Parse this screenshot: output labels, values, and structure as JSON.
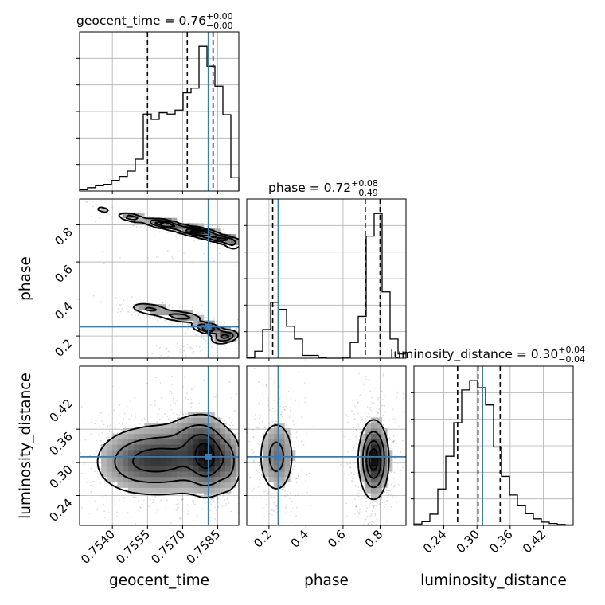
{
  "chart_data": {
    "type": "corner",
    "parameters": [
      "geocent_time",
      "phase",
      "luminosity_distance"
    ],
    "truth": {
      "geocent_time": 0.7581,
      "phase": 0.25,
      "luminosity_distance": 0.31
    },
    "truth_color": "#3d7ab0",
    "ranges": {
      "geocent_time": [
        0.7526,
        0.7594
      ],
      "phase": [
        0.08,
        0.94
      ],
      "luminosity_distance": [
        0.186,
        0.474
      ]
    },
    "ticks": {
      "geocent_time": [
        "0.7540",
        "0.7555",
        "0.7570",
        "0.7585"
      ],
      "phase": [
        "0.2",
        "0.4",
        "0.6",
        "0.8"
      ],
      "luminosity_distance": [
        "0.24",
        "0.30",
        "0.36",
        "0.42"
      ]
    },
    "titles": {
      "geocent_time": {
        "name": "geocent_time",
        "median": "0.76",
        "plus": "+0.00",
        "minus": "−0.00"
      },
      "phase": {
        "name": "phase",
        "median": "0.72",
        "plus": "+0.08",
        "minus": "−0.49"
      },
      "luminosity_distance": {
        "name": "luminosity_distance",
        "median": "0.30",
        "plus": "+0.04",
        "minus": "−0.04"
      }
    },
    "quantiles": {
      "geocent_time": [
        0.7555,
        0.7572,
        0.7583
      ],
      "phase": [
        0.22,
        0.72,
        0.8
      ],
      "luminosity_distance": [
        0.265,
        0.302,
        0.342
      ]
    },
    "hist_geocent_time": {
      "bin_edges": [
        0.7526,
        0.75294,
        0.75328,
        0.75362,
        0.75396,
        0.7543,
        0.75464,
        0.75498,
        0.75532,
        0.75566,
        0.756,
        0.75634,
        0.75668,
        0.75702,
        0.75736,
        0.7577,
        0.75804,
        0.75838,
        0.75872,
        0.75906,
        0.7594
      ],
      "counts": [
        2,
        5,
        8,
        10,
        16,
        22,
        30,
        48,
        116,
        108,
        118,
        116,
        122,
        148,
        155,
        218,
        188,
        158,
        115,
        20
      ]
    },
    "hist_phase": {
      "bin_edges": [
        0.08,
        0.123,
        0.166,
        0.209,
        0.252,
        0.295,
        0.338,
        0.381,
        0.424,
        0.467,
        0.51,
        0.553,
        0.596,
        0.639,
        0.682,
        0.725,
        0.768,
        0.811,
        0.854,
        0.897,
        0.94
      ],
      "counts": [
        2,
        20,
        82,
        160,
        140,
        92,
        55,
        8,
        8,
        2,
        0,
        0,
        3,
        45,
        120,
        350,
        415,
        190,
        55,
        12
      ]
    },
    "hist_luminosity_distance": {
      "bin_edges": [
        0.186,
        0.2004,
        0.2148,
        0.2292,
        0.2436,
        0.258,
        0.2724,
        0.2868,
        0.3012,
        0.3156,
        0.33,
        0.3444,
        0.3588,
        0.3732,
        0.3876,
        0.402,
        0.4164,
        0.4308,
        0.4452,
        0.4596,
        0.474
      ],
      "counts": [
        3,
        8,
        24,
        78,
        148,
        220,
        290,
        310,
        295,
        258,
        168,
        105,
        65,
        42,
        25,
        14,
        7,
        4,
        2,
        1
      ]
    },
    "kde_phase_vs_geocent_time": [
      {
        "x": 0.7536,
        "y": 0.882,
        "sx": 0.00025,
        "sy": 0.014,
        "rho": -0.5,
        "w": 0.22
      },
      {
        "x": 0.7548,
        "y": 0.84,
        "sx": 0.0003,
        "sy": 0.013,
        "rho": -0.5,
        "w": 0.6
      },
      {
        "x": 0.7562,
        "y": 0.804,
        "sx": 0.00045,
        "sy": 0.015,
        "rho": -0.6,
        "w": 1.0
      },
      {
        "x": 0.7576,
        "y": 0.762,
        "sx": 0.0005,
        "sy": 0.016,
        "rho": -0.6,
        "w": 1.1
      },
      {
        "x": 0.7587,
        "y": 0.722,
        "sx": 0.00045,
        "sy": 0.014,
        "rho": -0.6,
        "w": 0.8
      },
      {
        "x": 0.7591,
        "y": 0.69,
        "sx": 0.0002,
        "sy": 0.012,
        "rho": -0.3,
        "w": 0.35
      },
      {
        "x": 0.7572,
        "y": 0.628,
        "sx": 0.0012,
        "sy": 0.022,
        "rho": -0.3,
        "w": 0.06
      },
      {
        "x": 0.7556,
        "y": 0.345,
        "sx": 0.00045,
        "sy": 0.018,
        "rho": -0.4,
        "w": 0.45
      },
      {
        "x": 0.7569,
        "y": 0.305,
        "sx": 0.0005,
        "sy": 0.016,
        "rho": -0.4,
        "w": 0.55
      },
      {
        "x": 0.7581,
        "y": 0.24,
        "sx": 0.00035,
        "sy": 0.016,
        "rho": -0.5,
        "w": 1.0
      },
      {
        "x": 0.7588,
        "y": 0.196,
        "sx": 0.0003,
        "sy": 0.018,
        "rho": 0.3,
        "w": 0.8
      },
      {
        "x": 0.7572,
        "y": 0.13,
        "sx": 0.0008,
        "sy": 0.018,
        "rho": 0.6,
        "w": 0.12
      }
    ],
    "kde_luminosity_distance_vs_geocent_time": [
      {
        "x": 0.7564,
        "y": 0.305,
        "sx": 0.0012,
        "sy": 0.033,
        "rho": 0,
        "w": 1.0
      },
      {
        "x": 0.7581,
        "y": 0.31,
        "sx": 0.0005,
        "sy": 0.036,
        "rho": 0,
        "w": 1.1
      },
      {
        "x": 0.7548,
        "y": 0.3,
        "sx": 0.0009,
        "sy": 0.03,
        "rho": 0,
        "w": 0.5
      },
      {
        "x": 0.7574,
        "y": 0.35,
        "sx": 0.0005,
        "sy": 0.022,
        "rho": 0,
        "w": 0.35
      },
      {
        "x": 0.759,
        "y": 0.3,
        "sx": 0.0003,
        "sy": 0.03,
        "rho": 0,
        "w": 0.45
      }
    ],
    "kde_luminosity_distance_vs_phase": [
      {
        "x": 0.24,
        "y": 0.31,
        "sx": 0.05,
        "sy": 0.035,
        "rho": 0,
        "w": 0.7
      },
      {
        "x": 0.765,
        "y": 0.305,
        "sx": 0.04,
        "sy": 0.035,
        "rho": 0,
        "w": 1.5
      }
    ]
  }
}
